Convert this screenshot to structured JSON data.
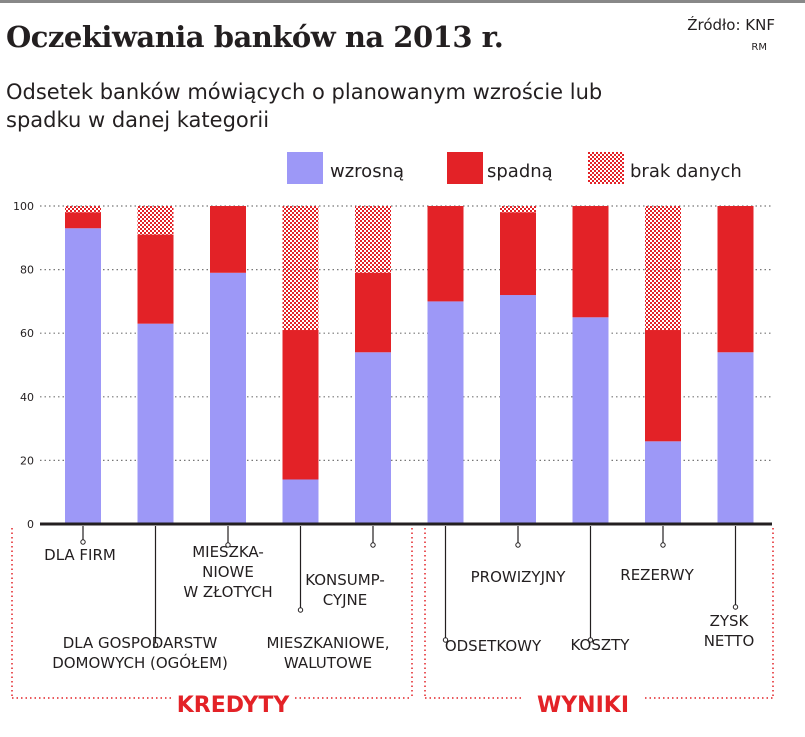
{
  "header": {
    "title": "Oczekiwania banków na 2013 r.",
    "subtitle": "Odsetek banków mówiących o planowanym wzroście lub spadku w danej kategorii",
    "source": "Źródło: KNF",
    "author": "RM"
  },
  "colors": {
    "wzrosna": "#9d98f7",
    "spadna": "#e32227",
    "brak": "#e32227",
    "group": "#e32227"
  },
  "chart_data": {
    "type": "bar",
    "stacked": true,
    "categories": [
      "DLA FIRM",
      "DLA GOSPODARSTW DOMOWYCH (OGÓŁEM)",
      "MIESZKANIOWE W ZŁOTYCH",
      "MIESZKANIOWE, WALUTOWE",
      "KONSUMPCYJNE",
      "ODSETKOWY",
      "PROWIZYJNY",
      "KOSZTY",
      "REZERWY",
      "ZYSK NETTO"
    ],
    "category_labels": [
      [
        "DLA FIRM"
      ],
      [
        "DLA GOSPODARSTW",
        "DOMOWYCH (OGÓŁEM)"
      ],
      [
        "MIESZKA-",
        "NIOWE",
        "W ZŁOTYCH"
      ],
      [
        "MIESZKANIOWE,",
        "WALUTOWE"
      ],
      [
        "KONSUMP-",
        "CYJNE"
      ],
      [
        "ODSETKOWY"
      ],
      [
        "PROWIZYJNY"
      ],
      [
        "KOSZTY"
      ],
      [
        "REZERWY"
      ],
      [
        "ZYSK",
        "NETTO"
      ]
    ],
    "series": [
      {
        "name": "wzrosną",
        "values": [
          93,
          63,
          79,
          14,
          54,
          70,
          72,
          65,
          26,
          54
        ]
      },
      {
        "name": "spadną",
        "values": [
          5,
          28,
          21,
          47,
          25,
          30,
          26,
          35,
          35,
          46
        ]
      },
      {
        "name": "brak danych",
        "values": [
          2,
          9,
          0,
          39,
          21,
          0,
          2,
          0,
          39,
          0
        ]
      }
    ],
    "yticks": [
      0,
      20,
      40,
      60,
      80,
      100
    ],
    "ylim": [
      0,
      100
    ],
    "grid": true,
    "legend": "top-right",
    "groups": [
      {
        "label": "KREDYTY",
        "from": 0,
        "to": 4
      },
      {
        "label": "WYNIKI",
        "from": 5,
        "to": 9
      }
    ]
  }
}
